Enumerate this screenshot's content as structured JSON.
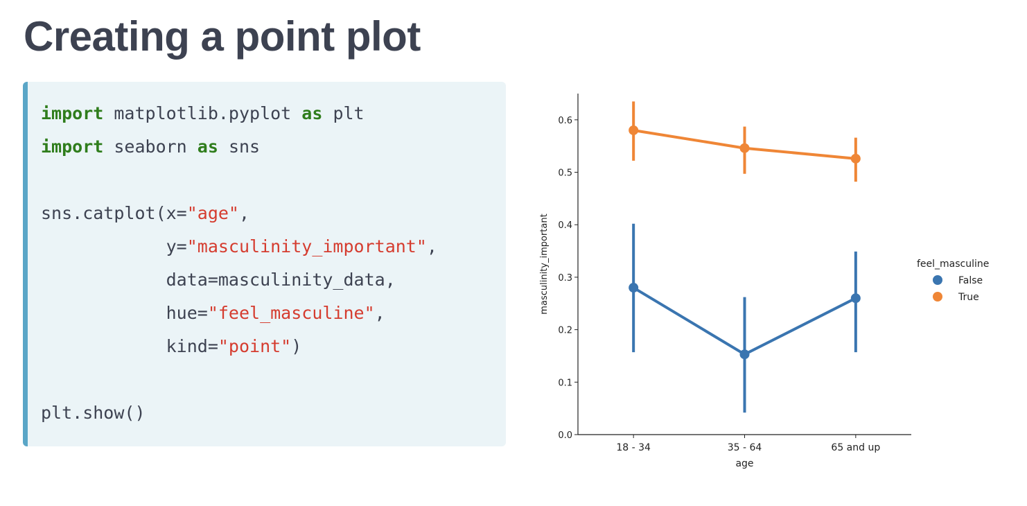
{
  "title": "Creating a point plot",
  "code": {
    "lines": [
      [
        {
          "t": "kw",
          "v": "import"
        },
        {
          "t": "plain",
          "v": " matplotlib.pyplot "
        },
        {
          "t": "kw",
          "v": "as"
        },
        {
          "t": "plain",
          "v": " plt"
        }
      ],
      [
        {
          "t": "kw",
          "v": "import"
        },
        {
          "t": "plain",
          "v": " seaborn "
        },
        {
          "t": "kw",
          "v": "as"
        },
        {
          "t": "plain",
          "v": " sns"
        }
      ],
      [],
      [
        {
          "t": "plain",
          "v": "sns.catplot(x="
        },
        {
          "t": "str",
          "v": "\"age\""
        },
        {
          "t": "plain",
          "v": ","
        }
      ],
      [
        {
          "t": "plain",
          "v": "            y="
        },
        {
          "t": "str",
          "v": "\"masculinity_important\""
        },
        {
          "t": "plain",
          "v": ","
        }
      ],
      [
        {
          "t": "plain",
          "v": "            data=masculinity_data,"
        }
      ],
      [
        {
          "t": "plain",
          "v": "            hue="
        },
        {
          "t": "str",
          "v": "\"feel_masculine\""
        },
        {
          "t": "plain",
          "v": ","
        }
      ],
      [
        {
          "t": "plain",
          "v": "            kind="
        },
        {
          "t": "str",
          "v": "\"point\""
        },
        {
          "t": "plain",
          "v": ")"
        }
      ],
      [],
      [
        {
          "t": "plain",
          "v": "plt.show()"
        }
      ]
    ]
  },
  "chart_data": {
    "type": "line",
    "categories": [
      "18 - 34",
      "35 - 64",
      "65 and up"
    ],
    "xlabel": "age",
    "ylabel": "masculinity_important",
    "ylim": [
      0.0,
      0.65
    ],
    "yticks": [
      "0.0",
      "0.1",
      "0.2",
      "0.3",
      "0.4",
      "0.5",
      "0.6"
    ],
    "legend": {
      "title": "feel_masculine",
      "placement": "right"
    },
    "series": [
      {
        "name": "False",
        "color": "#3a75b0",
        "values": [
          0.28,
          0.153,
          0.26
        ],
        "ci": [
          [
            0.157,
            0.402
          ],
          [
            0.042,
            0.262
          ],
          [
            0.157,
            0.349
          ]
        ]
      },
      {
        "name": "True",
        "color": "#ef8636",
        "values": [
          0.58,
          0.546,
          0.526
        ],
        "ci": [
          [
            0.522,
            0.635
          ],
          [
            0.497,
            0.587
          ],
          [
            0.482,
            0.566
          ]
        ]
      }
    ]
  }
}
